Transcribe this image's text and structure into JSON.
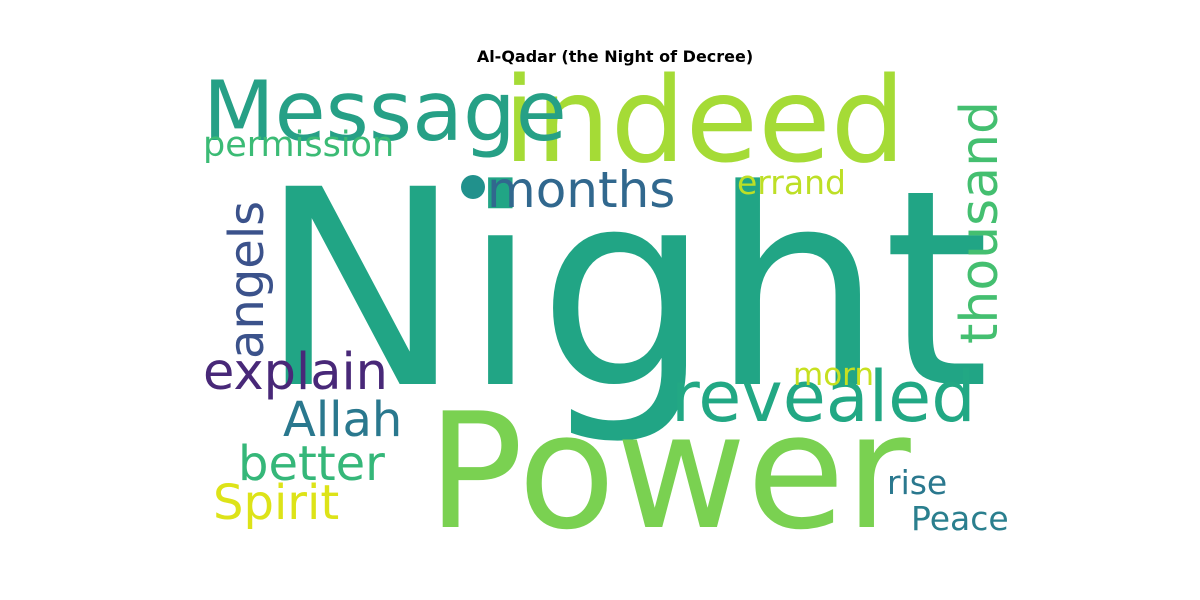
{
  "title": "Al-Qadar (the Night of Decree)",
  "words": {
    "night": {
      "text": "Night",
      "color": "#21a585"
    },
    "power": {
      "text": "Power",
      "color": "#7ad151"
    },
    "indeed": {
      "text": "indeed",
      "color": "#a5db36"
    },
    "message": {
      "text": "Message",
      "color": "#26a086"
    },
    "revealed": {
      "text": "revealed",
      "color": "#22a884"
    },
    "months": {
      "text": "months",
      "color": "#31688e"
    },
    "explain": {
      "text": "explain",
      "color": "#482878"
    },
    "allah": {
      "text": "Allah",
      "color": "#2a788e"
    },
    "better": {
      "text": "better",
      "color": "#35b779"
    },
    "spirit": {
      "text": "Spirit",
      "color": "#dde318"
    },
    "permission": {
      "text": "permission",
      "color": "#3bbb75"
    },
    "errand": {
      "text": "errand",
      "color": "#bddf26"
    },
    "morn": {
      "text": "morn",
      "color": "#c7e020"
    },
    "rise": {
      "text": "rise",
      "color": "#2a788e"
    },
    "peace": {
      "text": "Peace",
      "color": "#2a7f8e"
    },
    "thousand": {
      "text": "thousand",
      "color": "#44bf70"
    },
    "angels": {
      "text": "angels",
      "color": "#3b528b"
    }
  },
  "dot_color": "#21918c"
}
